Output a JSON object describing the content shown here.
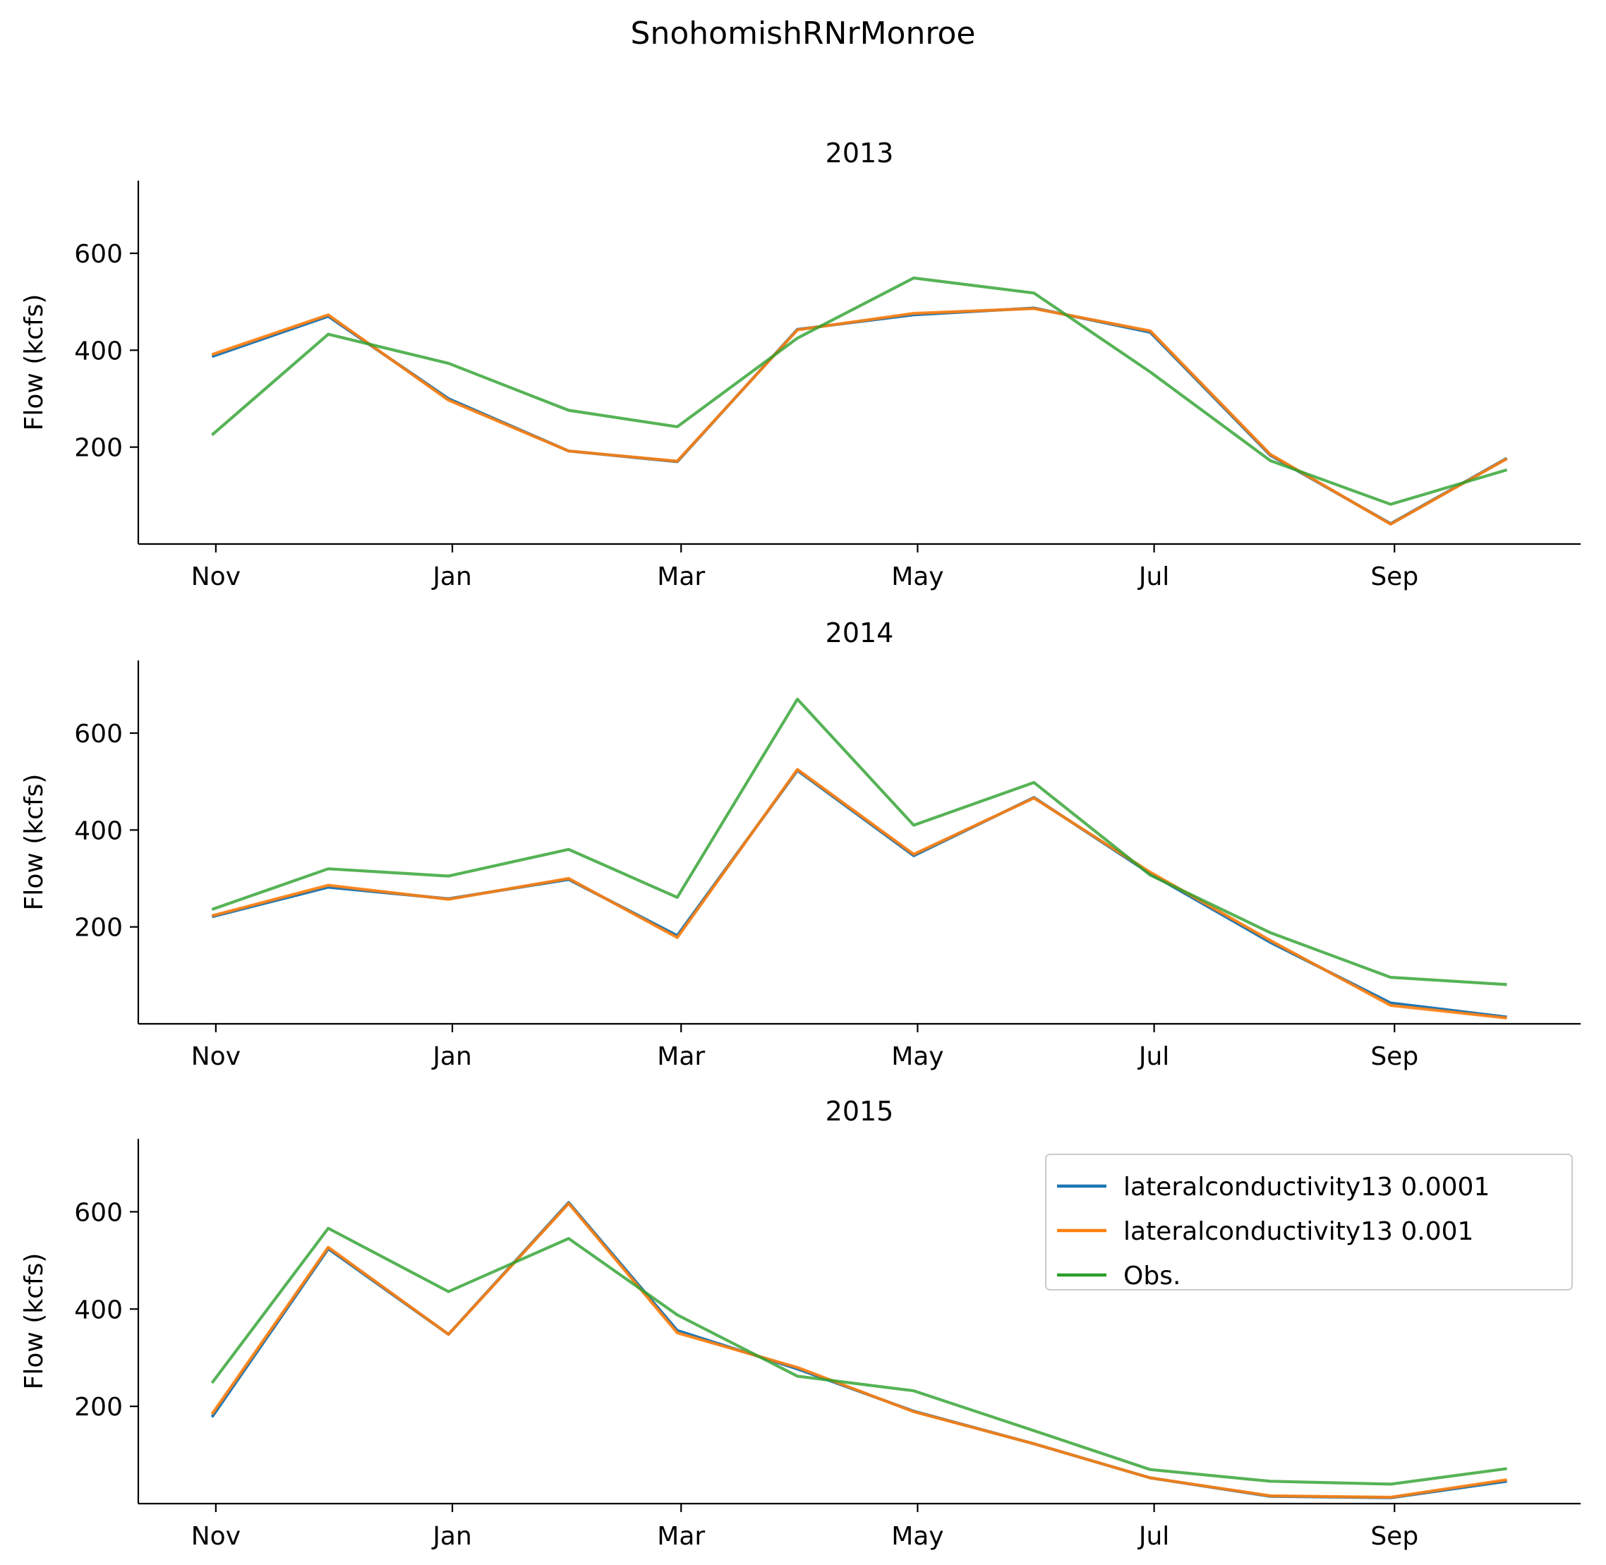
{
  "figure": {
    "title": "SnohomishRNrMonroe"
  },
  "chart_data": [
    {
      "type": "line",
      "title": "2013",
      "xlabel": "",
      "ylabel": "Flow (kcfs)",
      "x": [
        "2012-10-31",
        "2012-11-30",
        "2012-12-31",
        "2013-01-31",
        "2013-02-28",
        "2013-03-31",
        "2013-04-30",
        "2013-05-31",
        "2013-06-30",
        "2013-07-31",
        "2013-08-31",
        "2013-09-30"
      ],
      "xticks": [
        {
          "label": "Nov",
          "x": "2012-11-01"
        },
        {
          "label": "Jan",
          "x": "2013-01-01"
        },
        {
          "label": "Mar",
          "x": "2013-03-01"
        },
        {
          "label": "May",
          "x": "2013-05-01"
        },
        {
          "label": "Jul",
          "x": "2013-07-01"
        },
        {
          "label": "Sep",
          "x": "2013-09-01"
        }
      ],
      "yticks": [
        200,
        400,
        600
      ],
      "ylim": [
        0,
        750
      ],
      "grid": false,
      "series": [
        {
          "name": "lateralconductivity13 0.0001",
          "color": "#1f77b4",
          "values": [
            387,
            470,
            300,
            192,
            170,
            443,
            473,
            487,
            437,
            183,
            42,
            177
          ]
        },
        {
          "name": "lateralconductivity13 0.001",
          "color": "#ff7f0e",
          "values": [
            391,
            473,
            297,
            192,
            171,
            442,
            476,
            486,
            440,
            185,
            41,
            176
          ]
        },
        {
          "name": "Obs.",
          "color": "#2ca02c",
          "values": [
            225,
            433,
            373,
            276,
            242,
            425,
            549,
            518,
            355,
            172,
            82,
            153
          ]
        }
      ]
    },
    {
      "type": "line",
      "title": "2014",
      "xlabel": "",
      "ylabel": "Flow (kcfs)",
      "x": [
        "2013-10-31",
        "2013-11-30",
        "2013-12-31",
        "2014-01-31",
        "2014-02-28",
        "2014-03-31",
        "2014-04-30",
        "2014-05-31",
        "2014-06-30",
        "2014-07-31",
        "2014-08-31",
        "2014-09-30"
      ],
      "xticks": [
        {
          "label": "Nov",
          "x": "2013-11-01"
        },
        {
          "label": "Jan",
          "x": "2014-01-01"
        },
        {
          "label": "Mar",
          "x": "2014-03-01"
        },
        {
          "label": "May",
          "x": "2014-05-01"
        },
        {
          "label": "Jul",
          "x": "2014-07-01"
        },
        {
          "label": "Sep",
          "x": "2014-09-01"
        }
      ],
      "yticks": [
        200,
        400,
        600
      ],
      "ylim": [
        0,
        750
      ],
      "grid": false,
      "series": [
        {
          "name": "lateralconductivity13 0.0001",
          "color": "#1f77b4",
          "values": [
            221,
            282,
            258,
            298,
            182,
            523,
            347,
            467,
            310,
            168,
            43,
            14
          ]
        },
        {
          "name": "lateralconductivity13 0.001",
          "color": "#ff7f0e",
          "values": [
            223,
            286,
            257,
            300,
            178,
            525,
            350,
            466,
            313,
            172,
            38,
            12
          ]
        },
        {
          "name": "Obs.",
          "color": "#2ca02c",
          "values": [
            236,
            320,
            305,
            360,
            261,
            670,
            410,
            498,
            307,
            188,
            96,
            81
          ]
        }
      ]
    },
    {
      "type": "line",
      "title": "2015",
      "xlabel": "",
      "ylabel": "Flow (kcfs)",
      "x": [
        "2014-10-31",
        "2014-11-30",
        "2014-12-31",
        "2015-01-31",
        "2015-02-28",
        "2015-03-31",
        "2015-04-30",
        "2015-05-31",
        "2015-06-30",
        "2015-07-31",
        "2015-08-31",
        "2015-09-30"
      ],
      "xticks": [
        {
          "label": "Nov",
          "x": "2014-11-01"
        },
        {
          "label": "Jan",
          "x": "2015-01-01"
        },
        {
          "label": "Mar",
          "x": "2015-03-01"
        },
        {
          "label": "May",
          "x": "2015-05-01"
        },
        {
          "label": "Jul",
          "x": "2015-07-01"
        },
        {
          "label": "Sep",
          "x": "2015-09-01"
        }
      ],
      "yticks": [
        200,
        400,
        600
      ],
      "ylim": [
        0,
        750
      ],
      "grid": false,
      "legend": "top-right",
      "series": [
        {
          "name": "lateralconductivity13 0.0001",
          "color": "#1f77b4",
          "values": [
            178,
            524,
            348,
            619,
            356,
            277,
            190,
            123,
            53,
            15,
            12,
            46
          ]
        },
        {
          "name": "lateralconductivity13 0.001",
          "color": "#ff7f0e",
          "values": [
            184,
            527,
            348,
            617,
            351,
            280,
            189,
            123,
            53,
            16,
            13,
            49
          ]
        },
        {
          "name": "Obs.",
          "color": "#2ca02c",
          "values": [
            248,
            566,
            436,
            545,
            388,
            262,
            232,
            150,
            70,
            46,
            40,
            72
          ]
        }
      ]
    }
  ]
}
